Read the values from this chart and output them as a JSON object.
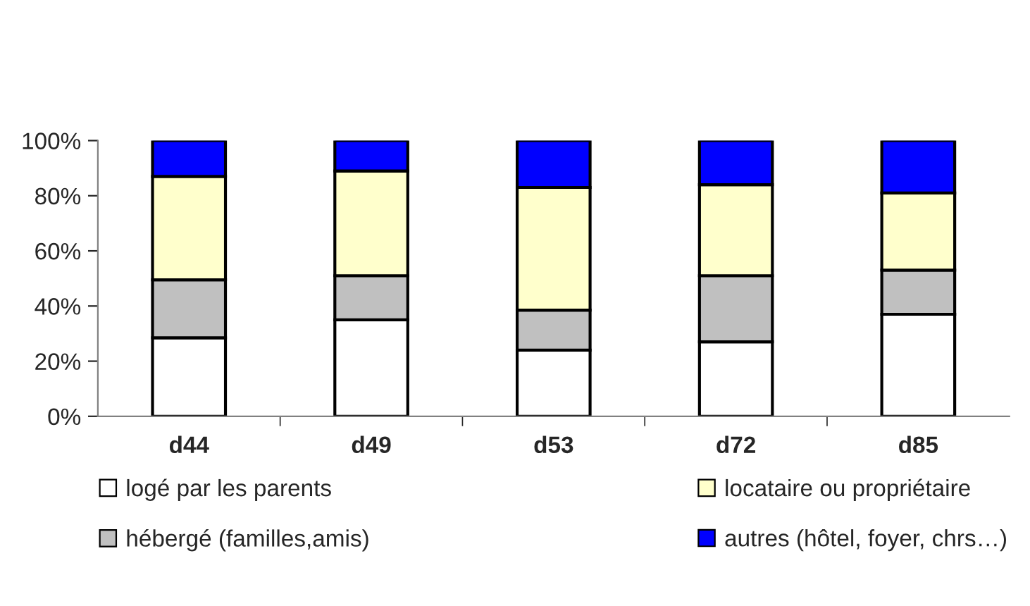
{
  "chart_data": {
    "type": "bar",
    "stacked": true,
    "categories": [
      "d44",
      "d49",
      "d53",
      "d72",
      "d85"
    ],
    "series": [
      {
        "name": "logé par les parents",
        "color": "#ffffff",
        "values": [
          28.5,
          35,
          24,
          27,
          37
        ]
      },
      {
        "name": "hébergé (familles,amis)",
        "color": "#c0c0c0",
        "values": [
          21,
          16,
          14.5,
          24,
          16
        ]
      },
      {
        "name": "locataire ou propriétaire",
        "color": "#ffffcc",
        "values": [
          37.5,
          38,
          44.5,
          33,
          28
        ]
      },
      {
        "name": "autres (hôtel, foyer, chrs…)",
        "color": "#0000ff",
        "values": [
          13,
          11,
          17,
          16,
          19
        ]
      }
    ],
    "ylim": [
      0,
      100
    ],
    "yticks": [
      {
        "value": 0,
        "label": "0%"
      },
      {
        "value": 20,
        "label": "20%"
      },
      {
        "value": 40,
        "label": "40%"
      },
      {
        "value": 60,
        "label": "60%"
      },
      {
        "value": 80,
        "label": "80%"
      },
      {
        "value": 100,
        "label": "100%"
      }
    ],
    "legend": "bottom",
    "grid": false
  }
}
